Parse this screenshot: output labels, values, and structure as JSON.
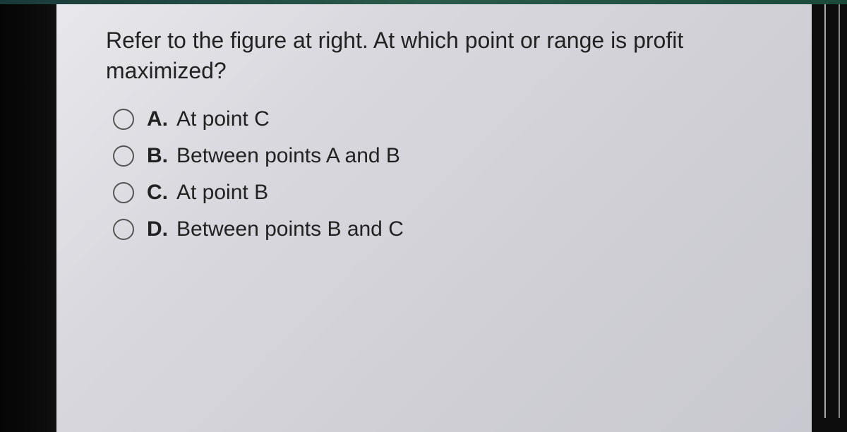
{
  "question": {
    "prompt": "Refer to the figure at right. At which point or range is profit maximized?",
    "options": [
      {
        "letter": "A.",
        "text": "At point C"
      },
      {
        "letter": "B.",
        "text": "Between points A and B"
      },
      {
        "letter": "C.",
        "text": "At point B"
      },
      {
        "letter": "D.",
        "text": "Between points B and C"
      }
    ]
  },
  "colors": {
    "panel_bg": "#d8d8de",
    "text": "#222222",
    "radio_border": "#555555"
  }
}
